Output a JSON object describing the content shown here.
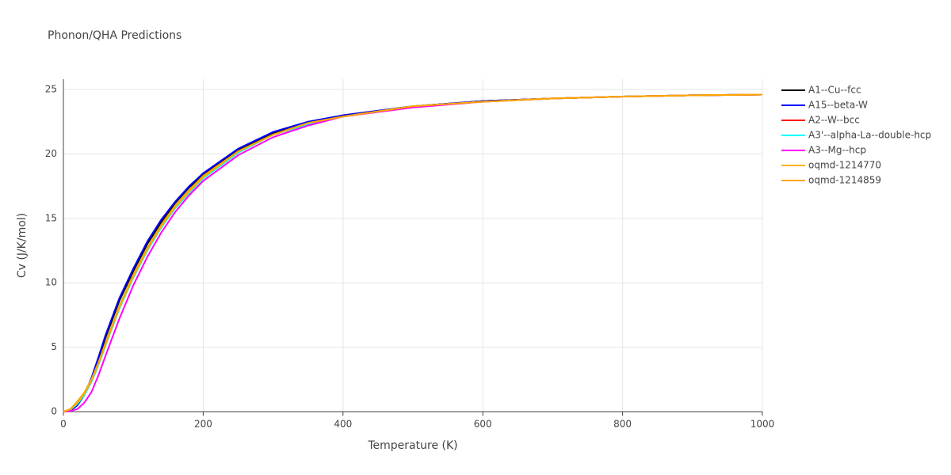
{
  "chart_data": {
    "type": "line",
    "title": "Phonon/QHA Predictions",
    "x_label": "Temperature (K)",
    "y_label": "Cv (J/K/mol)",
    "x": [
      0,
      10,
      20,
      30,
      40,
      50,
      60,
      80,
      100,
      120,
      140,
      160,
      180,
      200,
      250,
      300,
      350,
      400,
      500,
      600,
      700,
      800,
      900,
      1000
    ],
    "series": [
      {
        "name": "A1--Cu--fcc",
        "color": "#000000",
        "values": [
          0,
          0.1,
          0.5,
          1.3,
          2.5,
          4.0,
          5.7,
          8.6,
          10.9,
          13.0,
          14.7,
          16.2,
          17.4,
          18.4,
          20.3,
          21.6,
          22.4,
          23.0,
          23.7,
          24.1,
          24.3,
          24.45,
          24.55,
          24.6
        ]
      },
      {
        "name": "A15--beta-W",
        "color": "#0000ff",
        "values": [
          0,
          0.1,
          0.5,
          1.3,
          2.6,
          4.2,
          5.9,
          8.8,
          11.1,
          13.2,
          14.9,
          16.3,
          17.5,
          18.5,
          20.4,
          21.7,
          22.5,
          23.0,
          23.7,
          24.1,
          24.3,
          24.45,
          24.55,
          24.6
        ]
      },
      {
        "name": "A2--W--bcc",
        "color": "#ff0000",
        "values": [
          0,
          0.15,
          0.6,
          1.3,
          2.3,
          3.6,
          5.1,
          8.0,
          10.4,
          12.5,
          14.3,
          15.8,
          17.0,
          18.1,
          20.1,
          21.5,
          22.3,
          22.9,
          23.7,
          24.05,
          24.3,
          24.45,
          24.55,
          24.6
        ]
      },
      {
        "name": "A3'--alpha-La--double-hcp",
        "color": "#00ffff",
        "values": [
          0,
          0.15,
          0.6,
          1.3,
          2.3,
          3.6,
          5.1,
          8.0,
          10.4,
          12.5,
          14.3,
          15.8,
          17.0,
          18.1,
          20.1,
          21.5,
          22.3,
          22.9,
          23.7,
          24.05,
          24.3,
          24.45,
          24.55,
          24.6
        ]
      },
      {
        "name": "A3--Mg--hcp",
        "color": "#ff00ff",
        "values": [
          0,
          0.05,
          0.2,
          0.7,
          1.5,
          2.8,
          4.3,
          7.2,
          9.8,
          12.0,
          13.9,
          15.5,
          16.8,
          17.9,
          19.9,
          21.3,
          22.2,
          22.9,
          23.6,
          24.05,
          24.3,
          24.45,
          24.55,
          24.6
        ]
      },
      {
        "name": "oqmd-1214770",
        "color": "#ffb000",
        "values": [
          0,
          0.2,
          0.7,
          1.4,
          2.4,
          3.7,
          5.2,
          8.1,
          10.5,
          12.6,
          14.4,
          15.9,
          17.1,
          18.2,
          20.2,
          21.5,
          22.4,
          22.9,
          23.7,
          24.05,
          24.3,
          24.45,
          24.55,
          24.6
        ]
      },
      {
        "name": "oqmd-1214859",
        "color": "#ffa500",
        "values": [
          0,
          0.2,
          0.8,
          1.5,
          2.5,
          3.8,
          5.3,
          8.2,
          10.6,
          12.7,
          14.5,
          16.0,
          17.2,
          18.3,
          20.2,
          21.5,
          22.4,
          22.9,
          23.7,
          24.05,
          24.3,
          24.45,
          24.55,
          24.6
        ]
      }
    ],
    "xlim": [
      0,
      1000
    ],
    "xticks": [
      0,
      200,
      400,
      600,
      800,
      1000
    ],
    "ylim": [
      0,
      25.8
    ],
    "yticks": [
      0,
      5,
      10,
      15,
      20,
      25
    ],
    "grid": true
  }
}
